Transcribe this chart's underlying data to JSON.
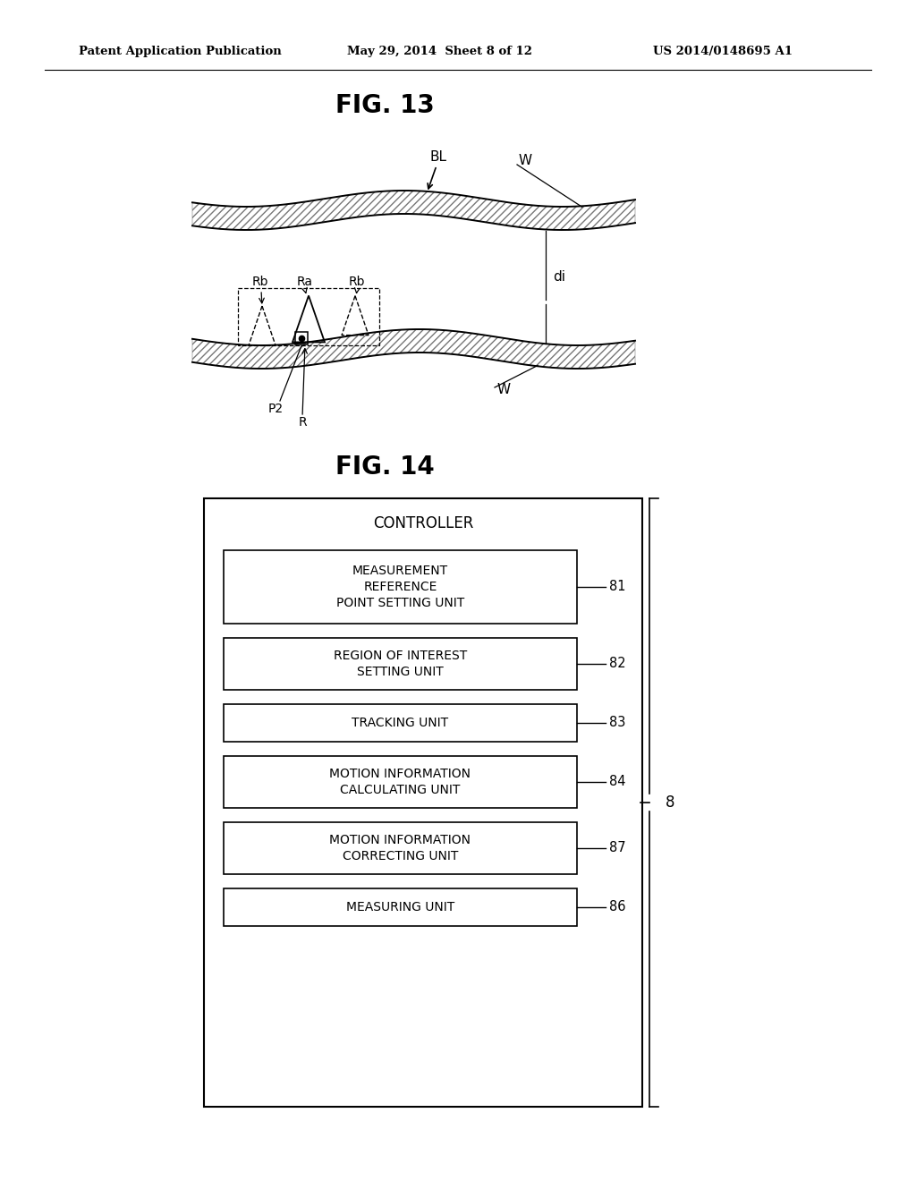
{
  "header_left": "Patent Application Publication",
  "header_mid": "May 29, 2014  Sheet 8 of 12",
  "header_right": "US 2014/0148695 A1",
  "fig13_title": "FIG. 13",
  "fig14_title": "FIG. 14",
  "controller_label": "CONTROLLER",
  "outer_brace_label": "8",
  "boxes": [
    {
      "label": "MEASUREMENT\nREFERENCE\nPOINT SETTING UNIT",
      "ref": "81",
      "lines": 3
    },
    {
      "label": "REGION OF INTEREST\nSETTING UNIT",
      "ref": "82",
      "lines": 2
    },
    {
      "label": "TRACKING UNIT",
      "ref": "83",
      "lines": 1
    },
    {
      "label": "MOTION INFORMATION\nCALCULATING UNIT",
      "ref": "84",
      "lines": 2
    },
    {
      "label": "MOTION INFORMATION\nCORRECTING UNIT",
      "ref": "87",
      "lines": 2
    },
    {
      "label": "MEASURING UNIT",
      "ref": "86",
      "lines": 1
    }
  ],
  "bg_color": "#ffffff",
  "line_color": "#000000",
  "text_color": "#000000"
}
